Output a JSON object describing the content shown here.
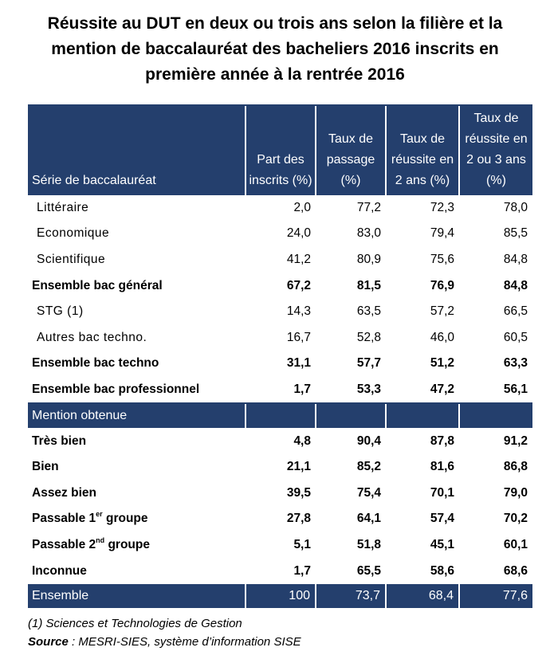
{
  "title": {
    "line1": "Réussite au DUT en deux ou trois ans selon la filière et la",
    "line2": "mention de baccalauréat des bacheliers 2016 inscrits en",
    "line3": "première année à la rentrée 2016"
  },
  "table": {
    "headers": {
      "serie": "Série de baccalauréat",
      "part_inscrits": "Part des inscrits (%)",
      "taux_passage": "Taux de passage (%)",
      "taux_2ans": "Taux de réussite en 2 ans (%)",
      "taux_2ou3ans": "Taux de réussite en 2 ou 3 ans (%)"
    },
    "series_rows": [
      {
        "label": "Littéraire",
        "part": "2,0",
        "passage": "77,2",
        "r2": "72,3",
        "r23": "78,0"
      },
      {
        "label": "Economique",
        "part": "24,0",
        "passage": "83,0",
        "r2": "79,4",
        "r23": "85,5"
      },
      {
        "label": "Scientifique",
        "part": "41,2",
        "passage": "80,9",
        "r2": "75,6",
        "r23": "84,8"
      },
      {
        "label": "Ensemble bac général",
        "part": "67,2",
        "passage": "81,5",
        "r2": "76,9",
        "r23": "84,8"
      },
      {
        "label": "STG (1)",
        "part": "14,3",
        "passage": "63,5",
        "r2": "57,2",
        "r23": "66,5"
      },
      {
        "label": "Autres bac techno.",
        "part": "16,7",
        "passage": "52,8",
        "r2": "46,0",
        "r23": "60,5"
      },
      {
        "label": "Ensemble bac techno",
        "part": "31,1",
        "passage": "57,7",
        "r2": "51,2",
        "r23": "63,3"
      },
      {
        "label": "Ensemble bac professionnel",
        "part": "1,7",
        "passage": "53,3",
        "r2": "47,2",
        "r23": "56,1"
      }
    ],
    "section_label": "Mention obtenue",
    "mention_rows": [
      {
        "label": "Très bien",
        "part": "4,8",
        "passage": "90,4",
        "r2": "87,8",
        "r23": "91,2"
      },
      {
        "label": "Bien",
        "part": "21,1",
        "passage": "85,2",
        "r2": "81,6",
        "r23": "86,8"
      },
      {
        "label": "Assez bien",
        "part": "39,5",
        "passage": "75,4",
        "r2": "70,1",
        "r23": "79,0"
      },
      {
        "label": "Passable 1",
        "sup": "er",
        "suffix": " groupe",
        "part": "27,8",
        "passage": "64,1",
        "r2": "57,4",
        "r23": "70,2"
      },
      {
        "label": "Passable 2",
        "sup": "nd",
        "suffix": " groupe",
        "part": "5,1",
        "passage": "51,8",
        "r2": "45,1",
        "r23": "60,1"
      },
      {
        "label": "Inconnue",
        "part": "1,7",
        "passage": "65,5",
        "r2": "58,6",
        "r23": "68,6"
      }
    ],
    "total_row": {
      "label": "Ensemble",
      "part": "100",
      "passage": "73,7",
      "r2": "68,4",
      "r23": "77,6"
    }
  },
  "footnote": "(1) Sciences et Technologies de Gestion",
  "source": {
    "label": "Source",
    "text": " : MESRI-SIES, système d’information SISE"
  }
}
